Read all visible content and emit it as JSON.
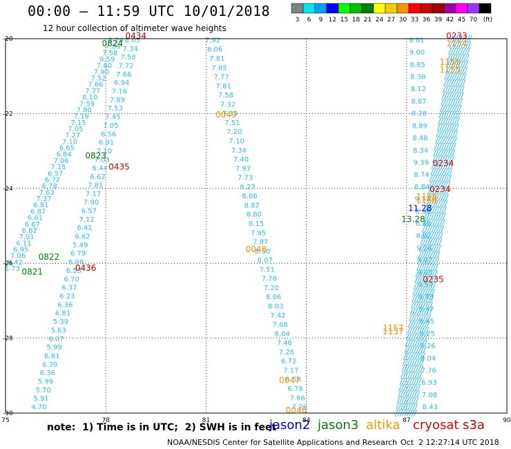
{
  "header": {
    "title": "00:00 – 11:59 UTC 10/01/2018",
    "subtitle": "12 hour collection of altimeter wave heights"
  },
  "colorbar": {
    "colors": [
      "#808080",
      "#00e8e8",
      "#00a0ff",
      "#0000ff",
      "#00ff00",
      "#00c000",
      "#008000",
      "#ffff00",
      "#f0d000",
      "#ff9000",
      "#ff0000",
      "#d00000",
      "#a00000",
      "#a000a0",
      "#ff00ff",
      "#a030ff",
      "#000000"
    ],
    "labels": [
      "3",
      "6",
      "9",
      "12",
      "15",
      "18",
      "21",
      "24",
      "27",
      "30",
      "33",
      "36",
      "39",
      "42",
      "45",
      "70",
      "(ft)"
    ]
  },
  "footer": {
    "note": "note:  1) Time is in UTC;  2) SWH is in feet",
    "credit": "NOAA/NESDIS Center for Satellite Applications and Research",
    "stamp": "Oct  2 12:27:14 UTC 2018"
  },
  "chart_data": {
    "type": "scatter",
    "xlim": [
      75,
      90
    ],
    "ylim": [
      -30,
      -20
    ],
    "xticks": [
      "75",
      "78",
      "81",
      "84",
      "87",
      "90"
    ],
    "yticks": [
      "-20",
      "-22",
      "-24",
      "-26",
      "-28",
      "-30"
    ],
    "grid": true,
    "legend_position": "bottom",
    "series": [
      {
        "name": "jason2",
        "color": "#0000d0"
      },
      {
        "name": "jason3",
        "color": "#008000"
      },
      {
        "name": "altika",
        "color": "#ff9000"
      },
      {
        "name": "cryosat",
        "color": "#e00000"
      },
      {
        "name": "s3a",
        "color": "#c00000"
      }
    ],
    "tracks": [
      {
        "id": "s3a-leftA",
        "color": "#30b8e8",
        "x_start": 75.2,
        "y_start": -26.2,
        "x_end": 78.3,
        "y_end": -20.1,
        "values": [
          "6.73",
          "6.42",
          "7.06",
          "6.95",
          "6.11",
          "7.01",
          "6.82",
          "6.67",
          "6.61",
          "6.87",
          "6.81",
          "7.37",
          "7.63",
          "6.78",
          "6.72",
          "6.57",
          "7.15",
          "7.06",
          "6.84",
          "6.65",
          "7.10",
          "7.27",
          "7.05",
          "7.15",
          "7.19",
          "7.80",
          "7.59",
          "8.10",
          "7.77",
          "7.66",
          "7.52",
          "7.90",
          "7.60",
          "8.59",
          "7.58",
          "7.89",
          "8.24"
        ]
      },
      {
        "id": "s3a-leftB",
        "color": "#30b8e8",
        "x_start": 76.0,
        "y_start": -29.9,
        "x_end": 78.8,
        "y_end": -20.1,
        "values": [
          "4.70",
          "5.91",
          "5.70",
          "5.99",
          "6.36",
          "6.39",
          "6.81",
          "5.99",
          "6.07",
          "5.63",
          "5.39",
          "6.81",
          "6.36",
          "6.23",
          "6.37",
          "6.70",
          "6.53",
          "6.98",
          "6.79",
          "5.49",
          "6.62",
          "6.41",
          "7.12",
          "6.57",
          "7.90",
          "7.17",
          "7.81",
          "6.62",
          "6.44",
          "7.03",
          "7.10",
          "6.91",
          "6.56",
          "7.05",
          "7.45",
          "7.53",
          "7.89",
          "7.16",
          "6.94",
          "7.66",
          "7.72",
          "7.58",
          "7.34",
          "8.05"
        ]
      },
      {
        "id": "s3a-middle",
        "color": "#30b8e8",
        "x_start": 81.2,
        "y_start": -20.1,
        "x_end": 83.8,
        "y_end": -29.9,
        "values": [
          "7.92",
          "8.06",
          "7.81",
          "7.85",
          "7.77",
          "7.81",
          "7.58",
          "7.32",
          "7.19",
          "7.51",
          "7.20",
          "7.10",
          "7.34",
          "7.40",
          "7.97",
          "7.73",
          "8.27",
          "8.66",
          "8.82",
          "8.80",
          "8.15",
          "7.95",
          "7.87",
          "8.50",
          "8.07",
          "7.51",
          "7.76",
          "7.20",
          "8.06",
          "8.03",
          "7.42",
          "7.68",
          "8.04",
          "7.46",
          "7.26",
          "6.72",
          "7.17",
          "6.68",
          "6.78",
          "7.66",
          "7.26"
        ]
      },
      {
        "id": "s3a-rightA",
        "color": "#30b8e8",
        "x_start": 87.3,
        "y_start": -20.1,
        "x_end": 87.7,
        "y_end": -29.9,
        "values": [
          "9.01",
          "9.00",
          "8.85",
          "8.38",
          "8.12",
          "8.87",
          "8.28",
          "8.89",
          "8.48",
          "8.34",
          "9.39",
          "8.74",
          "8.84",
          "9.77",
          "8.89",
          "6.40",
          "8.02",
          "9.26",
          "9.07",
          "9.85",
          "9.54",
          "9.73",
          "9.47",
          "8.45",
          "8.25",
          "8.26",
          "9.04",
          "7.76",
          "6.93",
          "7.08",
          "8.43"
        ]
      }
    ],
    "labels": [
      {
        "text": "0434",
        "sat": "s3a",
        "x": 78.9,
        "y": -20.0
      },
      {
        "text": "0824",
        "sat": "jason3",
        "x": 78.2,
        "y": -20.2
      },
      {
        "text": "0823",
        "sat": "jason3",
        "x": 77.7,
        "y": -23.2
      },
      {
        "text": "0435",
        "sat": "s3a",
        "x": 78.4,
        "y": -23.5
      },
      {
        "text": "0822",
        "sat": "jason3",
        "x": 76.3,
        "y": -25.9
      },
      {
        "text": "0821",
        "sat": "jason3",
        "x": 75.8,
        "y": -26.3
      },
      {
        "text": "0436",
        "sat": "s3a",
        "x": 77.4,
        "y": -26.2
      },
      {
        "text": "0049",
        "sat": "altika",
        "x": 81.6,
        "y": -22.1
      },
      {
        "text": "0048",
        "sat": "altika",
        "x": 82.5,
        "y": -25.7
      },
      {
        "text": "0047",
        "sat": "altika",
        "x": 83.5,
        "y": -29.2
      },
      {
        "text": "0046",
        "sat": "altika",
        "x": 83.7,
        "y": -30.0
      },
      {
        "text": "0233",
        "sat": "cryosat",
        "x": 88.5,
        "y": -20.0
      },
      {
        "text": "1154",
        "sat": "altika",
        "x": 88.5,
        "y": -20.2
      },
      {
        "text": "1155",
        "sat": "altika",
        "x": 88.3,
        "y": -20.7
      },
      {
        "text": "1155",
        "sat": "altika",
        "x": 88.3,
        "y": -20.9
      },
      {
        "text": "0234",
        "sat": "cryosat",
        "x": 88.1,
        "y": -23.4
      },
      {
        "text": "0234",
        "sat": "cryosat",
        "x": 88.0,
        "y": -24.1
      },
      {
        "text": "1156",
        "sat": "altika",
        "x": 87.6,
        "y": -24.3
      },
      {
        "text": "1156",
        "sat": "altika",
        "x": 87.6,
        "y": -24.4
      },
      {
        "text": "11.28",
        "sat": "jason2",
        "x": 87.4,
        "y": -24.6
      },
      {
        "text": "13.28",
        "sat": "jason3",
        "x": 87.2,
        "y": -24.9
      },
      {
        "text": "0235",
        "sat": "cryosat",
        "x": 87.8,
        "y": -26.5
      },
      {
        "text": "1157",
        "sat": "altika",
        "x": 86.6,
        "y": -27.8
      },
      {
        "text": "1157",
        "sat": "altika",
        "x": 86.6,
        "y": -27.9
      }
    ]
  }
}
